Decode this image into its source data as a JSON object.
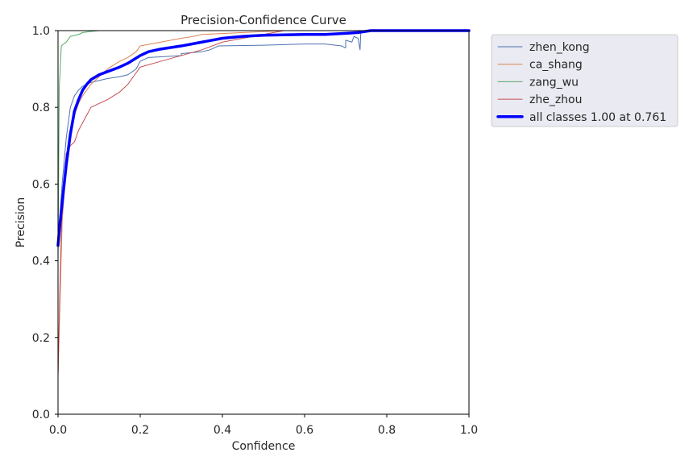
{
  "chart_data": {
    "type": "line",
    "title": "Precision-Confidence Curve",
    "xlabel": "Confidence",
    "ylabel": "Precision",
    "xlim": [
      0,
      1
    ],
    "ylim": [
      0,
      1
    ],
    "xticks": [
      "0.0",
      "0.2",
      "0.4",
      "0.6",
      "0.8",
      "1.0"
    ],
    "yticks": [
      "0.0",
      "0.2",
      "0.4",
      "0.6",
      "0.8",
      "1.0"
    ],
    "grid": false,
    "legend_position": "outside-top-right",
    "series": [
      {
        "name": "zhen_kong",
        "color": "#4c72b0",
        "width": 1,
        "points": [
          [
            0.0,
            0.45
          ],
          [
            0.01,
            0.6
          ],
          [
            0.02,
            0.72
          ],
          [
            0.03,
            0.8
          ],
          [
            0.04,
            0.83
          ],
          [
            0.05,
            0.845
          ],
          [
            0.06,
            0.855
          ],
          [
            0.08,
            0.865
          ],
          [
            0.1,
            0.87
          ],
          [
            0.12,
            0.875
          ],
          [
            0.15,
            0.88
          ],
          [
            0.17,
            0.885
          ],
          [
            0.19,
            0.9
          ],
          [
            0.2,
            0.92
          ],
          [
            0.22,
            0.93
          ],
          [
            0.3,
            0.935
          ],
          [
            0.3,
            0.94
          ],
          [
            0.35,
            0.945
          ],
          [
            0.37,
            0.95
          ],
          [
            0.39,
            0.96
          ],
          [
            0.5,
            0.962
          ],
          [
            0.6,
            0.965
          ],
          [
            0.65,
            0.965
          ],
          [
            0.69,
            0.96
          ],
          [
            0.7,
            0.955
          ],
          [
            0.7,
            0.975
          ],
          [
            0.715,
            0.97
          ],
          [
            0.72,
            0.985
          ],
          [
            0.73,
            0.98
          ],
          [
            0.735,
            0.95
          ],
          [
            0.737,
            1.0
          ],
          [
            1.0,
            1.0
          ]
        ]
      },
      {
        "name": "ca_shang",
        "color": "#dd8452",
        "width": 1,
        "points": [
          [
            0.0,
            0.1
          ],
          [
            0.005,
            0.3
          ],
          [
            0.01,
            0.5
          ],
          [
            0.02,
            0.65
          ],
          [
            0.03,
            0.72
          ],
          [
            0.04,
            0.78
          ],
          [
            0.05,
            0.81
          ],
          [
            0.06,
            0.83
          ],
          [
            0.08,
            0.86
          ],
          [
            0.1,
            0.88
          ],
          [
            0.12,
            0.9
          ],
          [
            0.15,
            0.92
          ],
          [
            0.17,
            0.93
          ],
          [
            0.19,
            0.945
          ],
          [
            0.2,
            0.96
          ],
          [
            0.25,
            0.97
          ],
          [
            0.3,
            0.98
          ],
          [
            0.33,
            0.985
          ],
          [
            0.35,
            0.99
          ],
          [
            0.45,
            0.995
          ],
          [
            0.55,
            1.0
          ],
          [
            1.0,
            1.0
          ]
        ]
      },
      {
        "name": "zang_wu",
        "color": "#55a868",
        "width": 1,
        "points": [
          [
            0.0,
            0.4
          ],
          [
            0.003,
            0.85
          ],
          [
            0.008,
            0.96
          ],
          [
            0.02,
            0.97
          ],
          [
            0.03,
            0.985
          ],
          [
            0.05,
            0.99
          ],
          [
            0.06,
            0.995
          ],
          [
            0.08,
            0.998
          ],
          [
            0.1,
            1.0
          ],
          [
            1.0,
            1.0
          ]
        ]
      },
      {
        "name": "zhe_zhou",
        "color": "#c44e52",
        "width": 1,
        "points": [
          [
            0.0,
            0.1
          ],
          [
            0.005,
            0.35
          ],
          [
            0.01,
            0.55
          ],
          [
            0.02,
            0.68
          ],
          [
            0.03,
            0.7
          ],
          [
            0.04,
            0.71
          ],
          [
            0.05,
            0.74
          ],
          [
            0.06,
            0.76
          ],
          [
            0.07,
            0.78
          ],
          [
            0.08,
            0.8
          ],
          [
            0.1,
            0.81
          ],
          [
            0.12,
            0.82
          ],
          [
            0.15,
            0.84
          ],
          [
            0.17,
            0.86
          ],
          [
            0.19,
            0.89
          ],
          [
            0.2,
            0.905
          ],
          [
            0.25,
            0.92
          ],
          [
            0.3,
            0.935
          ],
          [
            0.35,
            0.95
          ],
          [
            0.4,
            0.97
          ],
          [
            0.45,
            0.98
          ],
          [
            0.5,
            0.99
          ],
          [
            0.55,
            1.0
          ],
          [
            1.0,
            1.0
          ]
        ]
      },
      {
        "name": "all classes 1.00 at 0.761",
        "color": "#0000ff",
        "width": 3.5,
        "points": [
          [
            0.0,
            0.44
          ],
          [
            0.005,
            0.5
          ],
          [
            0.01,
            0.55
          ],
          [
            0.02,
            0.65
          ],
          [
            0.03,
            0.73
          ],
          [
            0.04,
            0.79
          ],
          [
            0.05,
            0.82
          ],
          [
            0.06,
            0.845
          ],
          [
            0.07,
            0.86
          ],
          [
            0.08,
            0.872
          ],
          [
            0.1,
            0.885
          ],
          [
            0.12,
            0.893
          ],
          [
            0.15,
            0.905
          ],
          [
            0.17,
            0.915
          ],
          [
            0.2,
            0.935
          ],
          [
            0.22,
            0.945
          ],
          [
            0.25,
            0.952
          ],
          [
            0.3,
            0.96
          ],
          [
            0.35,
            0.97
          ],
          [
            0.4,
            0.98
          ],
          [
            0.45,
            0.985
          ],
          [
            0.5,
            0.988
          ],
          [
            0.6,
            0.99
          ],
          [
            0.65,
            0.99
          ],
          [
            0.7,
            0.993
          ],
          [
            0.73,
            0.995
          ],
          [
            0.761,
            1.0
          ],
          [
            1.0,
            1.0
          ]
        ]
      }
    ]
  }
}
